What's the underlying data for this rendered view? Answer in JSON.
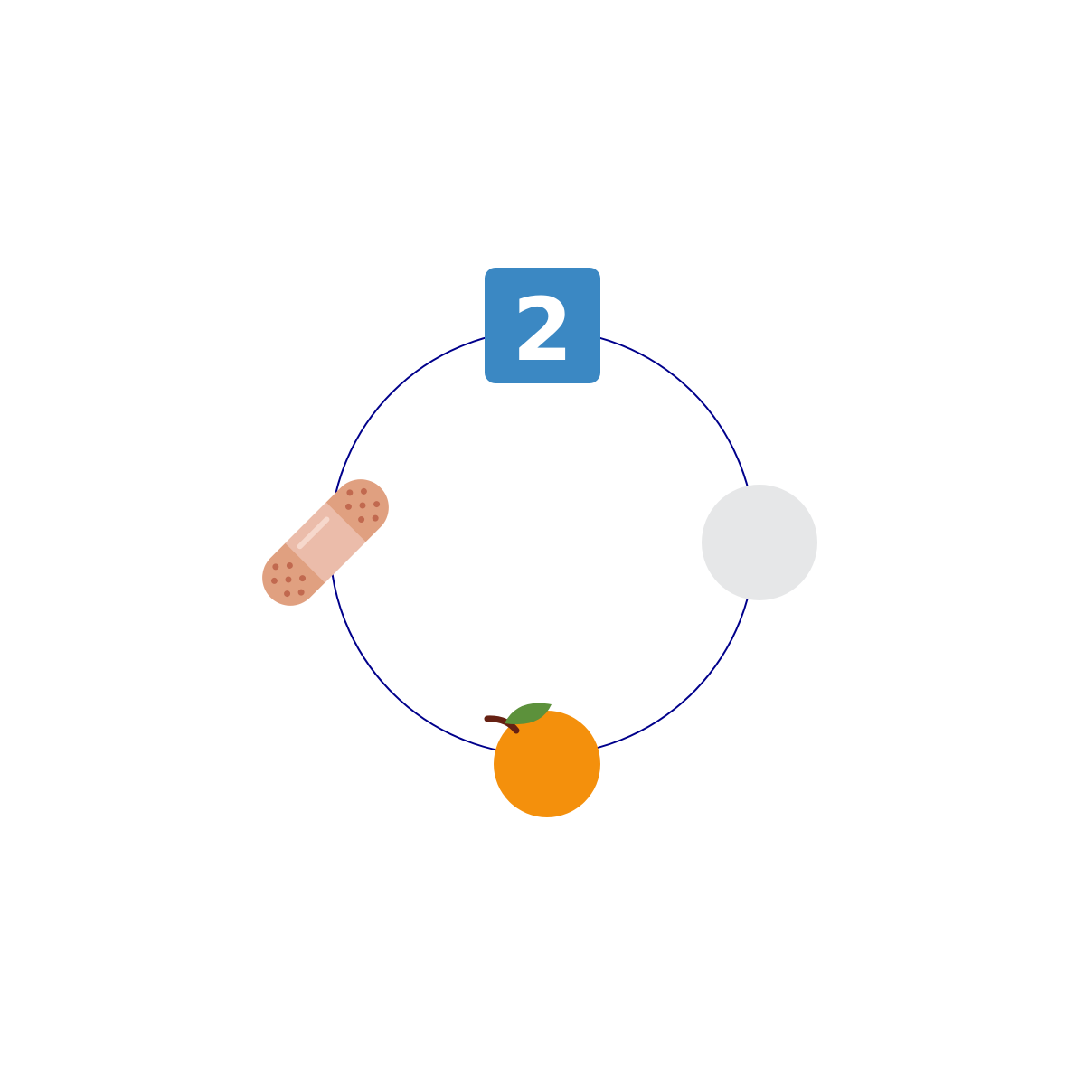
{
  "diagram": {
    "ring_color": "#00008b",
    "items": [
      {
        "id": "keycap-digit-two",
        "icon": "keycap-digit-two-icon",
        "position": "top",
        "label": "2",
        "colors": {
          "background": "#3b88c3",
          "text": "#ffffff"
        }
      },
      {
        "id": "blank-circle",
        "icon": "white-circle-icon",
        "position": "right",
        "colors": {
          "fill": "#e6e7e8"
        }
      },
      {
        "id": "tangerine",
        "icon": "tangerine-icon",
        "position": "bottom",
        "colors": {
          "fruit": "#f4900c",
          "leaf": "#5c913b",
          "stem": "#662113"
        }
      },
      {
        "id": "adhesive-bandage",
        "icon": "adhesive-bandage-icon",
        "position": "left",
        "colors": {
          "ends": "#e0a080",
          "pad": "#ebbcaa",
          "holes": "#c1694f",
          "shine": "#f6d8cc"
        }
      }
    ]
  }
}
